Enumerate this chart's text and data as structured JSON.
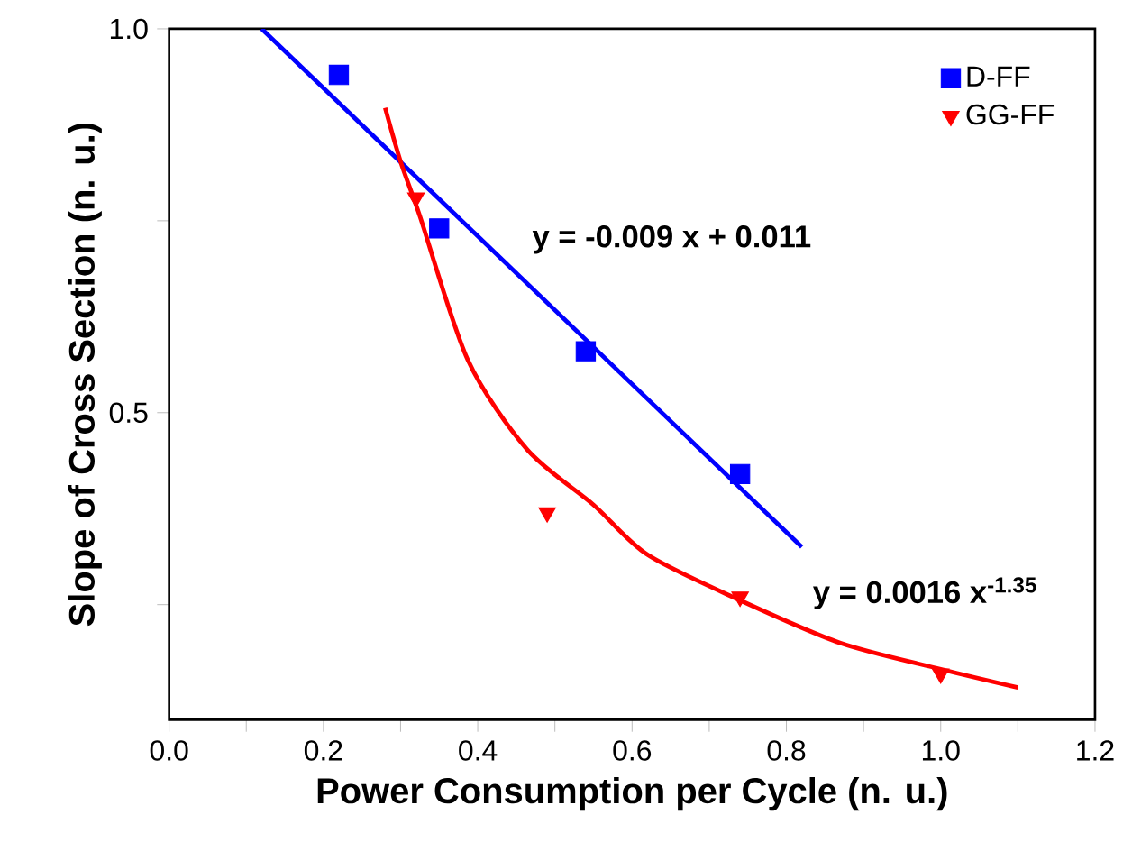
{
  "chart_data": {
    "type": "scatter",
    "xlabel": "Power Consumption per Cycle (n. u.)",
    "ylabel": "Slope of Cross Section (n. u.)",
    "xlim": [
      0.0,
      1.2
    ],
    "ylim": [
      0.1,
      1.0
    ],
    "xticks": [
      {
        "value": 0,
        "label": "0.0"
      },
      {
        "value": 0.1,
        "label": null
      },
      0.2,
      {
        "value": 0.3,
        "label": null
      },
      0.4,
      {
        "value": 0.5,
        "label": null
      },
      0.6,
      {
        "value": 0.7,
        "label": null
      },
      0.8,
      {
        "value": 0.9,
        "label": null
      },
      {
        "value": 1,
        "label": "1.0"
      },
      {
        "value": 1.1,
        "label": null
      },
      1.2
    ],
    "yticks": [
      {
        "value": 0.25,
        "label": null
      },
      0.5,
      {
        "value": 0.75,
        "label": null
      },
      {
        "value": 1,
        "label": "1.0"
      }
    ],
    "legend": "top right",
    "series": [
      {
        "name": "D-FF",
        "color": "#0000ff",
        "marker": "square",
        "x": [
          0.22,
          0.35,
          0.54,
          0.74
        ],
        "values": [
          0.94,
          0.74,
          0.58,
          0.42
        ]
      },
      {
        "name": "GG-FF",
        "color": "#ff0000",
        "marker": "triangle",
        "x": [
          0.32,
          0.49,
          0.74,
          1.0
        ],
        "values": [
          0.78,
          0.37,
          0.26,
          0.16
        ]
      },
      {
        "type": "line",
        "color": "#0000ff",
        "marker": "none",
        "x": [
          0.12,
          0.82
        ],
        "values": [
          1.0,
          0.325
        ]
      },
      {
        "type": "line",
        "color": "#ff0000",
        "marker": "none",
        "x": [
          0.28,
          0.3,
          0.325,
          0.387,
          0.464,
          0.55,
          0.62,
          0.737,
          0.87,
          1.0,
          1.1
        ],
        "values": [
          0.897,
          0.827,
          0.756,
          0.569,
          0.452,
          0.38,
          0.315,
          0.257,
          0.2,
          0.166,
          0.142
        ]
      }
    ],
    "annotations": [
      "y = -0.009 x + 0.011",
      "y = 0.0016 x$^{-1.35}$"
    ]
  }
}
